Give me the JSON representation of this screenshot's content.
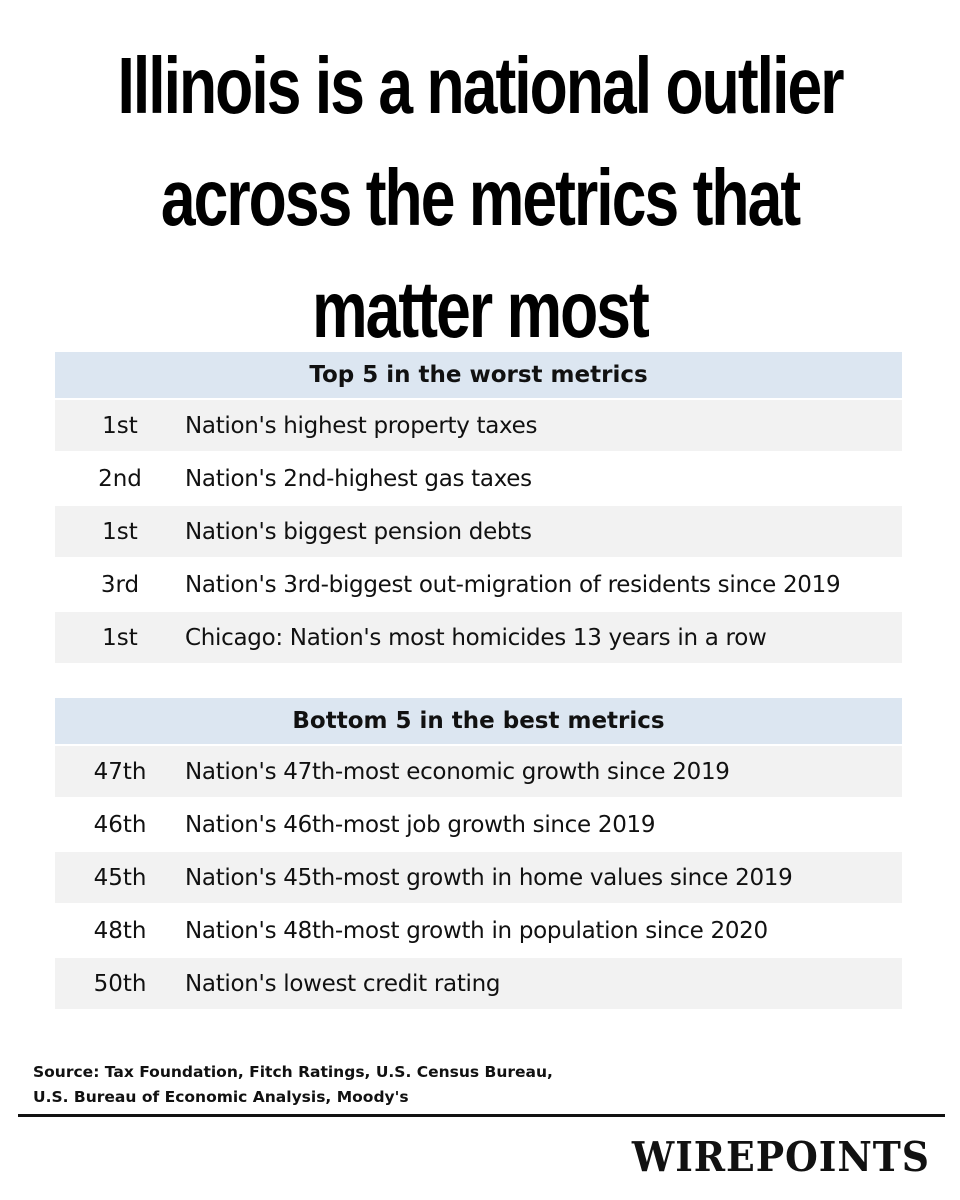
{
  "headline": {
    "lines": [
      "Illinois is a national outlier",
      "across the metrics that",
      "matter most"
    ]
  },
  "worst": {
    "title": "Top 5 in the worst metrics",
    "rows": [
      {
        "rank": "1st",
        "text": "Nation's highest property taxes"
      },
      {
        "rank": "2nd",
        "text": "Nation's 2nd-highest gas taxes"
      },
      {
        "rank": "1st",
        "text": "Nation's biggest pension debts"
      },
      {
        "rank": "3rd",
        "text": "Nation's 3rd-biggest out-migration of residents since 2019"
      },
      {
        "rank": "1st",
        "text": "Chicago: Nation's most homicides 13 years in a row"
      }
    ]
  },
  "best": {
    "title": "Bottom 5 in the best metrics",
    "rows": [
      {
        "rank": "47th",
        "text": "Nation's 47th-most economic growth since 2019"
      },
      {
        "rank": "46th",
        "text": "Nation's 46th-most job growth since 2019"
      },
      {
        "rank": "45th",
        "text": "Nation's 45th-most growth in home values since 2019"
      },
      {
        "rank": "48th",
        "text": "Nation's 48th-most growth in population since 2020"
      },
      {
        "rank": "50th",
        "text": "Nation's lowest credit rating"
      }
    ]
  },
  "source": {
    "line1": "Source: Tax Foundation, Fitch Ratings, U.S. Census Bureau,",
    "line2": "U.S. Bureau of Economic Analysis, Moody's"
  },
  "brand": "WIREPOINTS",
  "colors": {
    "header_bg": "#dce6f1",
    "row_bg": "#f2f2f2",
    "text": "#111111"
  }
}
